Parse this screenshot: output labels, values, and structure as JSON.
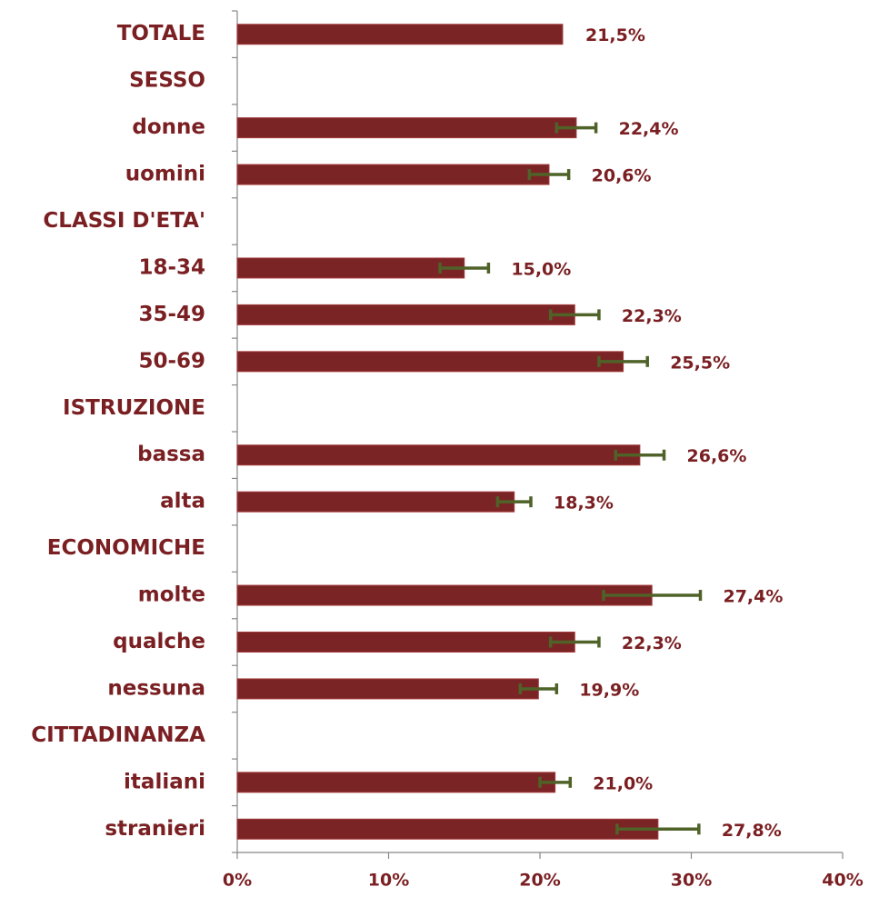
{
  "chart_data": {
    "type": "bar",
    "orientation": "horizontal",
    "categories": [
      "TOTALE",
      "SESSO",
      "donne",
      "uomini",
      "CLASSI D'ETA'",
      "18-34",
      "35-49",
      "50-69",
      "ISTRUZIONE",
      "bassa",
      "alta",
      "ECONOMICHE",
      "molte",
      "qualche",
      "nessuna",
      "CITTADINANZA",
      "italiani",
      "stranieri"
    ],
    "values": [
      21.5,
      null,
      22.4,
      20.6,
      null,
      15.0,
      22.3,
      25.5,
      null,
      26.6,
      18.3,
      null,
      27.4,
      22.3,
      19.9,
      null,
      21.0,
      27.8
    ],
    "value_labels": [
      "21,5%",
      null,
      "22,4%",
      "20,6%",
      null,
      "15,0%",
      "22,3%",
      "25,5%",
      null,
      "26,6%",
      "18,3%",
      null,
      "27,4%",
      "22,3%",
      "19,9%",
      null,
      "21,0%",
      "27,8%"
    ],
    "errors": [
      null,
      null,
      1.3,
      1.3,
      null,
      1.6,
      1.6,
      1.6,
      null,
      1.6,
      1.1,
      null,
      3.2,
      1.6,
      1.2,
      null,
      1.0,
      2.7
    ],
    "color": "#7b2426",
    "error_color": "#4f6228",
    "xlim": [
      0,
      40
    ],
    "xticks": [
      {
        "value": 0,
        "label": "0%"
      },
      {
        "value": 10,
        "label": "10%"
      },
      {
        "value": 20,
        "label": "20%"
      },
      {
        "value": 30,
        "label": "30%"
      },
      {
        "value": 40,
        "label": "40%"
      }
    ],
    "grid": false
  }
}
